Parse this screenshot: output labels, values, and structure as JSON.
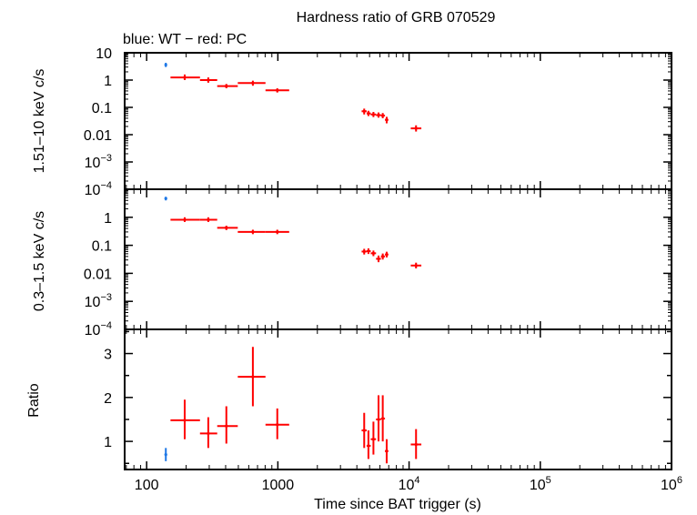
{
  "chart_data": {
    "type": "scatter",
    "title": "Hardness ratio of GRB 070529",
    "subtitle": "blue: WT − red: PC",
    "xlabel": "Time since BAT trigger (s)",
    "x_scale": "log",
    "xlim": [
      68,
      1000000
    ],
    "x_ticks": [
      {
        "value": 100,
        "label": "100"
      },
      {
        "value": 1000,
        "label": "1000"
      },
      {
        "value": 10000,
        "base": "10",
        "exp": "4"
      },
      {
        "value": 100000,
        "base": "10",
        "exp": "5"
      },
      {
        "value": 1000000,
        "base": "10",
        "exp": "6"
      }
    ],
    "colors": {
      "WT": "#1e78e6",
      "PC": "#ff0000",
      "axis": "#000000"
    },
    "panels": [
      {
        "id": "hard",
        "ylabel": "1.51–10 keV c/s",
        "y_scale": "log",
        "ylim": [
          0.0001,
          10
        ],
        "y_ticks": [
          {
            "value": 10,
            "label": "10"
          },
          {
            "value": 1,
            "label": "1"
          },
          {
            "value": 0.1,
            "label": "0.1"
          },
          {
            "value": 0.01,
            "label": "0.01"
          },
          {
            "value": 0.001,
            "base": "10",
            "exp": "−3"
          },
          {
            "value": 0.0001,
            "base": "10",
            "exp": "−4"
          }
        ],
        "series": [
          {
            "name": "WT",
            "points": [
              {
                "x": 140,
                "xlo": 138,
                "xhi": 142,
                "y": 3.6,
                "ylo": 3.0,
                "yhi": 4.3
              }
            ]
          },
          {
            "name": "PC",
            "points": [
              {
                "x": 195,
                "xlo": 152,
                "xhi": 255,
                "y": 1.25,
                "ylo": 1.0,
                "yhi": 1.6
              },
              {
                "x": 295,
                "xlo": 255,
                "xhi": 345,
                "y": 1.0,
                "ylo": 0.8,
                "yhi": 1.25
              },
              {
                "x": 405,
                "xlo": 345,
                "xhi": 495,
                "y": 0.6,
                "ylo": 0.5,
                "yhi": 0.72
              },
              {
                "x": 645,
                "xlo": 495,
                "xhi": 805,
                "y": 0.78,
                "ylo": 0.62,
                "yhi": 0.95
              },
              {
                "x": 990,
                "xlo": 805,
                "xhi": 1220,
                "y": 0.42,
                "ylo": 0.35,
                "yhi": 0.5
              },
              {
                "x": 4550,
                "xlo": 4350,
                "xhi": 4750,
                "y": 0.072,
                "ylo": 0.055,
                "yhi": 0.09
              },
              {
                "x": 4900,
                "xlo": 4750,
                "xhi": 5100,
                "y": 0.06,
                "ylo": 0.048,
                "yhi": 0.075
              },
              {
                "x": 5350,
                "xlo": 5100,
                "xhi": 5600,
                "y": 0.055,
                "ylo": 0.044,
                "yhi": 0.068
              },
              {
                "x": 5850,
                "xlo": 5600,
                "xhi": 6100,
                "y": 0.052,
                "ylo": 0.042,
                "yhi": 0.065
              },
              {
                "x": 6300,
                "xlo": 6100,
                "xhi": 6550,
                "y": 0.05,
                "ylo": 0.04,
                "yhi": 0.062
              },
              {
                "x": 6750,
                "xlo": 6550,
                "xhi": 6950,
                "y": 0.035,
                "ylo": 0.026,
                "yhi": 0.045
              },
              {
                "x": 11300,
                "xlo": 10300,
                "xhi": 12400,
                "y": 0.017,
                "ylo": 0.013,
                "yhi": 0.022
              }
            ]
          }
        ]
      },
      {
        "id": "soft",
        "ylabel": "0.3–1.5 keV c/s",
        "y_scale": "log",
        "ylim": [
          0.0001,
          10
        ],
        "y_ticks": [
          {
            "value": 1,
            "label": "1"
          },
          {
            "value": 0.1,
            "label": "0.1"
          },
          {
            "value": 0.01,
            "label": "0.01"
          },
          {
            "value": 0.001,
            "base": "10",
            "exp": "−3"
          },
          {
            "value": 0.0001,
            "base": "10",
            "exp": "−4"
          }
        ],
        "series": [
          {
            "name": "WT",
            "points": [
              {
                "x": 140,
                "xlo": 138,
                "xhi": 142,
                "y": 4.7,
                "ylo": 4.0,
                "yhi": 5.4
              }
            ]
          },
          {
            "name": "PC",
            "points": [
              {
                "x": 195,
                "xlo": 152,
                "xhi": 255,
                "y": 0.82,
                "ylo": 0.68,
                "yhi": 1.0
              },
              {
                "x": 295,
                "xlo": 255,
                "xhi": 345,
                "y": 0.82,
                "ylo": 0.68,
                "yhi": 1.0
              },
              {
                "x": 405,
                "xlo": 345,
                "xhi": 495,
                "y": 0.42,
                "ylo": 0.35,
                "yhi": 0.5
              },
              {
                "x": 645,
                "xlo": 495,
                "xhi": 805,
                "y": 0.3,
                "ylo": 0.25,
                "yhi": 0.36
              },
              {
                "x": 990,
                "xlo": 805,
                "xhi": 1220,
                "y": 0.3,
                "ylo": 0.25,
                "yhi": 0.36
              },
              {
                "x": 4550,
                "xlo": 4350,
                "xhi": 4750,
                "y": 0.06,
                "ylo": 0.047,
                "yhi": 0.075
              },
              {
                "x": 4900,
                "xlo": 4750,
                "xhi": 5100,
                "y": 0.062,
                "ylo": 0.049,
                "yhi": 0.078
              },
              {
                "x": 5350,
                "xlo": 5100,
                "xhi": 5600,
                "y": 0.052,
                "ylo": 0.041,
                "yhi": 0.065
              },
              {
                "x": 5850,
                "xlo": 5600,
                "xhi": 6100,
                "y": 0.033,
                "ylo": 0.025,
                "yhi": 0.043
              },
              {
                "x": 6300,
                "xlo": 6100,
                "xhi": 6550,
                "y": 0.04,
                "ylo": 0.031,
                "yhi": 0.051
              },
              {
                "x": 6750,
                "xlo": 6550,
                "xhi": 6950,
                "y": 0.047,
                "ylo": 0.037,
                "yhi": 0.059
              },
              {
                "x": 11300,
                "xlo": 10300,
                "xhi": 12400,
                "y": 0.019,
                "ylo": 0.015,
                "yhi": 0.024
              }
            ]
          }
        ]
      },
      {
        "id": "ratio",
        "ylabel": "Ratio",
        "y_scale": "linear",
        "ylim": [
          0.36,
          3.55
        ],
        "y_ticks": [
          {
            "value": 1,
            "label": "1"
          },
          {
            "value": 2,
            "label": "2"
          },
          {
            "value": 3,
            "label": "3"
          }
        ],
        "series": [
          {
            "name": "WT",
            "points": [
              {
                "x": 140,
                "xlo": 138,
                "xhi": 142,
                "y": 0.7,
                "ylo": 0.55,
                "yhi": 0.85
              }
            ]
          },
          {
            "name": "PC",
            "points": [
              {
                "x": 195,
                "xlo": 152,
                "xhi": 255,
                "y": 1.48,
                "ylo": 1.05,
                "yhi": 1.95
              },
              {
                "x": 295,
                "xlo": 255,
                "xhi": 345,
                "y": 1.18,
                "ylo": 0.85,
                "yhi": 1.55
              },
              {
                "x": 405,
                "xlo": 345,
                "xhi": 495,
                "y": 1.35,
                "ylo": 0.95,
                "yhi": 1.8
              },
              {
                "x": 645,
                "xlo": 495,
                "xhi": 805,
                "y": 2.47,
                "ylo": 1.8,
                "yhi": 3.15
              },
              {
                "x": 990,
                "xlo": 805,
                "xhi": 1220,
                "y": 1.38,
                "ylo": 1.05,
                "yhi": 1.75
              },
              {
                "x": 4550,
                "xlo": 4350,
                "xhi": 4750,
                "y": 1.25,
                "ylo": 0.85,
                "yhi": 1.65
              },
              {
                "x": 4900,
                "xlo": 4750,
                "xhi": 5100,
                "y": 0.9,
                "ylo": 0.6,
                "yhi": 1.25
              },
              {
                "x": 5350,
                "xlo": 5100,
                "xhi": 5600,
                "y": 1.05,
                "ylo": 0.7,
                "yhi": 1.45
              },
              {
                "x": 5850,
                "xlo": 5600,
                "xhi": 6100,
                "y": 1.5,
                "ylo": 1.0,
                "yhi": 2.05
              },
              {
                "x": 6300,
                "xlo": 6100,
                "xhi": 6550,
                "y": 1.52,
                "ylo": 1.0,
                "yhi": 2.05
              },
              {
                "x": 6750,
                "xlo": 6550,
                "xhi": 6950,
                "y": 0.78,
                "ylo": 0.5,
                "yhi": 1.05
              },
              {
                "x": 11300,
                "xlo": 10300,
                "xhi": 12400,
                "y": 0.93,
                "ylo": 0.6,
                "yhi": 1.28
              }
            ]
          }
        ]
      }
    ]
  }
}
